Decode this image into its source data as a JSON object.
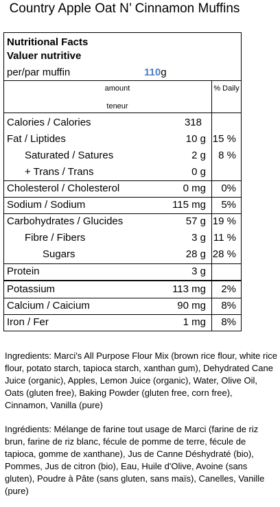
{
  "title": "Country Apple Oat N’ Cinnamon Muffins",
  "label": {
    "heading_en": "Nutritional Facts",
    "heading_fr": "Valuer nutritive",
    "serving_label": "per/par muffin",
    "serving_amount": "110",
    "serving_unit": "g",
    "amount_header": "amount",
    "teneur_header": "teneur",
    "daily_header": "% Daily",
    "rows": [
      {
        "name": "Calories / Calories",
        "amount": "318",
        "pct": ""
      },
      {
        "name": "Fat / Liptides",
        "amount": "10 g",
        "pct": "15 %"
      },
      {
        "name": "Saturated / Satures",
        "amount": "2 g",
        "pct": "8 %"
      },
      {
        "name": "+ Trans / Trans",
        "amount": "0 g",
        "pct": ""
      },
      {
        "name": "Cholesterol / Cholesterol",
        "amount": "0 mg",
        "pct": "0%"
      },
      {
        "name": "Sodium / Sodium",
        "amount": "115 mg",
        "pct": "5%"
      },
      {
        "name": "Carbohydrates / Glucides",
        "amount": "57 g",
        "pct": "19 %"
      },
      {
        "name": "Fibre / Fibers",
        "amount": "3 g",
        "pct": "11 %"
      },
      {
        "name": "Sugars",
        "amount": "28 g",
        "pct": "28 %"
      },
      {
        "name": "Protein",
        "amount": "3 g",
        "pct": ""
      },
      {
        "name": "Potassium",
        "amount": "113 mg",
        "pct": "2%"
      },
      {
        "name": "Calcium / Caicium",
        "amount": "90 mg",
        "pct": "8%"
      },
      {
        "name": "Iron / Fer",
        "amount": "1 mg",
        "pct": "8%"
      }
    ]
  },
  "ingredients_en": "Ingredients: Marci's All Purpose Flour Mix (brown rice flour, white rice flour, potato starch, tapioca starch, xanthan gum), Dehydrated Cane Juice (organic), Apples, Lemon Juice (organic), Water, Olive Oil, Oats (gluten free), Baking Powder (gluten free, corn free), Cinnamon, Vanilla (pure)",
  "ingredients_fr": "Ingrédients: Mélange de farine tout usage de Marci (farine de riz brun, farine de riz blanc, fécule de pomme de terre, fécule de tapioca, gomme de xanthane), Jus de Canne Déshydraté (bio), Pommes, Jus de citron (bio), Eau, Huile d'Olive, Avoine (sans gluten), Poudre à Pâte (sans gluten, sans maïs), Canelles, Vanille (pure)",
  "colors": {
    "serving_amount": "#4a7fc0"
  }
}
